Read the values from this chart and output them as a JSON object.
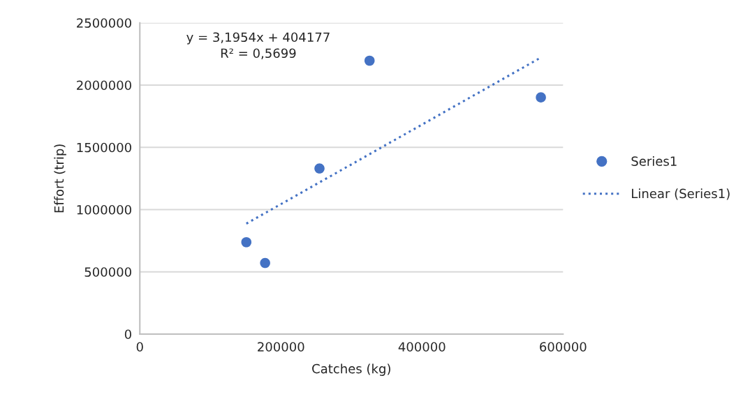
{
  "chart_data": {
    "type": "scatter",
    "xlabel": "Catches (kg)",
    "ylabel": "Effort (trip)",
    "series": [
      {
        "name": "Series1",
        "color": "#4472c4",
        "marker": "circle",
        "x": [
          151000,
          177600,
          254700,
          325700,
          568600
        ],
        "values": [
          738000,
          571000,
          1330000,
          2196000,
          1901000
        ]
      },
      {
        "name": "Linear (Series1)",
        "type": "line",
        "color": "#4472c4",
        "line_style": "dotted",
        "marker": "none",
        "x": [
          151000,
          567000
        ],
        "values": [
          887000,
          2216000
        ]
      }
    ],
    "annotations": [
      "y = 3,1954x + 404177\nR² = 0,5699"
    ],
    "xlim": [
      0,
      600000
    ],
    "xticks": [
      0,
      200000,
      400000,
      600000
    ],
    "ylim": [
      0,
      2500000
    ],
    "yticks": [
      0,
      500000,
      1000000,
      1500000,
      2000000,
      2500000
    ],
    "grid": "y",
    "legend": "right"
  }
}
